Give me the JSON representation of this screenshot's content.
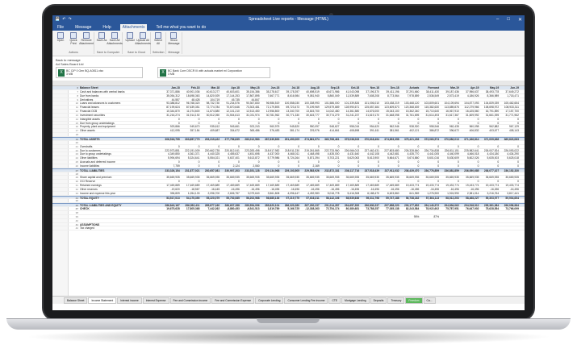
{
  "window": {
    "title": "Spreadsheet Live reports - Message (HTML)"
  },
  "tabs": [
    "File",
    "Message",
    "Help",
    "Attachments",
    "Tell me what you want to do"
  ],
  "active_tab": "Attachments",
  "ribbon": {
    "groups": [
      {
        "label": "Actions",
        "buttons": [
          "Open",
          "Quick Print",
          "Remove Attachment"
        ]
      },
      {
        "label": "Save to Computer",
        "buttons": [
          "Save As",
          "Save All Attachments"
        ]
      },
      {
        "label": "Save to Cloud",
        "buttons": [
          "Upload",
          "Upload All Attachments"
        ]
      },
      {
        "label": "Selection",
        "buttons": [
          "Select All"
        ]
      },
      {
        "label": "Message",
        "buttons": [
          "Show Message"
        ]
      }
    ]
  },
  "message": {
    "back": "Back to message",
    "meta": "Ad Sales Board Ltd",
    "attachments": [
      {
        "name": "BC CIP 0 Gen BQ-A0811.xlsx",
        "size": "3 MB"
      },
      {
        "name": "BC Bank Core DSCR III with actuals market ml Corporation",
        "size": "3 MB"
      }
    ]
  },
  "sheet": {
    "title": "Balance Sheet",
    "columns": [
      "Jan-18",
      "Feb-18",
      "Mar-18",
      "Apr-18",
      "May-18",
      "Jun-18",
      "Jul-18",
      "Aug-18",
      "Sep-18",
      "Oct-18",
      "Nov-18",
      "Dec-18",
      "Jan-19",
      "Feb-19",
      "Mar-19",
      "Apr-19",
      "May-19",
      "Jun-19"
    ],
    "rows": [
      {
        "n": "6",
        "label": "Balance Sheet",
        "style": "hdr",
        "values": [
          "Jan-18",
          "Feb-18",
          "Mar-18",
          "Apr-18",
          "May-18",
          "Jun-18",
          "Jul-18",
          "Aug-18",
          "Sep-18",
          "Oct-18",
          "Nov-18",
          "Dec-18",
          "Actuals",
          "Forecast",
          "Mar-19",
          "Apr-19",
          "May-19",
          "Jun-19"
        ]
      },
      {
        "n": "7",
        "label": "Cash and balances with central banks",
        "values": [
          "37,371,886",
          "40,901,036",
          "40,613,277",
          "40,603,601",
          "35,154,386",
          "35,278,617",
          "39,178,397",
          "40,698,519",
          "40,671,986",
          "41,043,098",
          "37,196,370",
          "39,411,196",
          "37,291,660",
          "38,411,430",
          "39,187,436",
          "37,956,637",
          "38,493,778",
          "37,649,272"
        ]
      },
      {
        "n": "8",
        "label": "Due from banks",
        "values": [
          "35,054,312",
          "18,698,363",
          "14,820,929",
          "17,144,253",
          "17,867,895",
          "7,667,771",
          "8,616,984",
          "9,081,940",
          "5,860,049",
          "11,539,889",
          "7,608,208",
          "8,773,564",
          "7,978,859",
          "2,536,549",
          "2,573,419",
          "4,186,926",
          "8,366,989",
          "1,718,471"
        ]
      },
      {
        "n": "9",
        "label": "Derivatives",
        "values": [
          "44,557",
          "48,428",
          "104,719",
          "45,735",
          "44,847",
          "",
          "",
          "",
          "",
          "",
          "",
          "",
          "",
          "",
          "",
          "",
          "",
          ""
        ]
      },
      {
        "n": "10",
        "label": "Loans and advances to customers",
        "values": [
          "93,388,812",
          "96,768,320",
          "98,732,730",
          "91,234,576",
          "90,367,830",
          "96,986,519",
          "100,558,030",
          "100,308,993",
          "101,586,000",
          "101,339,826",
          "101,006,010",
          "103,438,219",
          "103,468,120",
          "103,809,601",
          "104,109,694",
          "104,877,093",
          "104,839,039",
          "105,462,654"
        ]
      },
      {
        "n": "11",
        "label": "Financial leases",
        "values": [
          "87,199,624",
          "87,639,351",
          "72,774,784",
          "70,670,646",
          "73,303,481",
          "72,179,893",
          "69,723,473",
          "70,199,969",
          "129,579,689",
          "128,990,671",
          "125,657,484",
          "123,609,873",
          "120,368,639",
          "115,382,630",
          "113,889,876",
          "112,279,966",
          "108,698,972",
          "108,933,311"
        ]
      },
      {
        "n": "12",
        "label": "Financial OCB",
        "values": [
          "10,344,870",
          "11,074,600",
          "11,674,580",
          "12,101,210",
          "12,513,450",
          "12,956,800",
          "13,340,700",
          "13,815,700",
          "14,042,480",
          "14,361,580",
          "14,676,000",
          "15,043,100",
          "15,362,340",
          "15,710,640",
          "16,067,910",
          "16,425,560",
          "16,791,890",
          "17,157,700"
        ]
      },
      {
        "n": "13",
        "label": "Investment securities",
        "values": [
          "31,216,274",
          "31,914,192",
          "30,512,050",
          "31,504,613",
          "31,031,974",
          "30,781,962",
          "30,771,330",
          "30,615,777",
          "30,774,279",
          "31,241,237",
          "31,619,170",
          "31,648,098",
          "31,761,695",
          "31,614,493",
          "31,617,367",
          "31,609,992",
          "31,661,095",
          "31,771,962"
        ]
      },
      {
        "n": "14",
        "label": "Intangible assets",
        "values": [
          "0",
          "0",
          "0",
          "0",
          "0",
          "0",
          "0",
          "0",
          "0",
          "0",
          "0",
          "0",
          "0",
          "0",
          "0",
          "0",
          "0",
          "0"
        ]
      },
      {
        "n": "15",
        "label": "Due from group undertakings",
        "values": [
          "0",
          "0",
          "0",
          "0",
          "0",
          "0",
          "0",
          "0",
          "0",
          "0",
          "0",
          "0",
          "0",
          "0",
          "0",
          "0",
          "0",
          "0"
        ]
      },
      {
        "n": "16",
        "label": "Property, plant and equipment",
        "values": [
          "929,866",
          "949,670",
          "935,612",
          "945,661",
          "923,243",
          "960,975",
          "945,820",
          "950,097",
          "948,627",
          "958,016",
          "954,620",
          "962,946",
          "938,920",
          "958,946",
          "962,435",
          "960,098",
          "962,882",
          "967,129"
        ]
      },
      {
        "n": "17",
        "label": "Other assets",
        "values": [
          "412,095",
          "357,184",
          "409,687",
          "334,672",
          "365,486",
          "376,483",
          "381,174",
          "376,976",
          "414,661",
          "408,698",
          "391,611",
          "381,561",
          "402,121",
          "386,872",
          "396,672",
          "406,832",
          "403,677",
          "408,143"
        ]
      },
      {
        "n": "18",
        "label": "",
        "values": []
      },
      {
        "n": "19",
        "label": "TOTAL ASSETS",
        "style": "tot",
        "values": [
          "306,518,795",
          "303,857,779",
          "293,319,422",
          "277,756,835",
          "283,012,583",
          "287,639,893",
          "291,490,005",
          "274,861,974",
          "363,768,461",
          "375,038,033",
          "370,618,494",
          "374,693,358",
          "375,421,236",
          "373,063,574",
          "370,682,013",
          "371,166,814",
          "371,009,638",
          "369,823,083"
        ]
      },
      {
        "n": "20",
        "label": "",
        "values": []
      },
      {
        "n": "21",
        "label": "Overdrafts",
        "values": [
          "0",
          "0",
          "0",
          "0",
          "0",
          "0",
          "0",
          "0",
          "0",
          "0",
          "0",
          "0",
          "0",
          "0",
          "0",
          "0",
          "0",
          "0"
        ]
      },
      {
        "n": "22",
        "label": "Due to customers",
        "values": [
          "222,973,851",
          "222,191,009",
          "220,662,735",
          "220,812,041",
          "223,283,498",
          "218,917,982",
          "218,911,230",
          "219,261,865",
          "222,733,960",
          "226,066,013",
          "227,462,431",
          "227,803,680",
          "226,328,840",
          "226,734,838",
          "226,811,151",
          "225,982,641",
          "226,007,924",
          "226,093,022"
        ]
      },
      {
        "n": "23",
        "label": "Due to group undertakings",
        "values": [
          "4,349,850",
          "4,361,371",
          "4,440,325",
          "4,455,637",
          "4,451,698",
          "4,437,000",
          "4,468,011",
          "4,448,498",
          "4,435,000",
          "4,431,640",
          "4,442,108",
          "4,442,681",
          "4,435,770",
          "4,441,005",
          "4,440,099",
          "4,466,018",
          "4,434,180",
          "4,434,290"
        ]
      },
      {
        "n": "24",
        "label": "Other liabilities",
        "values": [
          "5,994,694",
          "5,324,641",
          "5,554,021",
          "5,637,401",
          "5,613,872",
          "5,779,986",
          "5,724,264",
          "5,871,394",
          "5,703,221",
          "5,620,063",
          "5,613,900",
          "5,664,671",
          "5,674,860",
          "5,601,016",
          "5,630,609",
          "5,602,026",
          "5,635,003",
          "5,625,018"
        ]
      },
      {
        "n": "25",
        "label": "Accruals and deferred income",
        "values": [
          "0",
          "0",
          "0",
          "0",
          "0",
          "0",
          "0",
          "0",
          "0",
          "0",
          "0",
          "0",
          "0",
          "0",
          "0",
          "0",
          "0",
          "0"
        ]
      },
      {
        "n": "26",
        "label": "Income liabilities",
        "values": [
          "7,759",
          "0",
          "0",
          "2,124",
          "2,060",
          "0",
          "0",
          "2,169",
          "0",
          "0",
          "0",
          "0",
          "0",
          "0",
          "0",
          "0",
          "0",
          "0"
        ]
      },
      {
        "n": "27",
        "label": "TOTAL LIABILITIES",
        "style": "tot",
        "values": [
          "233,326,154",
          "231,877,021",
          "230,657,081",
          "230,907,203",
          "233,351,128",
          "229,134,968",
          "229,103,505",
          "229,583,926",
          "232,872,181",
          "236,117,716",
          "237,518,439",
          "237,911,032",
          "236,439,470",
          "236,776,859",
          "236,881,859",
          "236,050,685",
          "236,077,107",
          "236,152,330"
        ]
      },
      {
        "n": "28",
        "label": "",
        "values": []
      },
      {
        "n": "29",
        "label": "Share capital and premium",
        "values": [
          "35,669,935",
          "35,669,935",
          "35,669,935",
          "35,669,935",
          "35,669,935",
          "35,669,935",
          "35,669,935",
          "35,669,935",
          "35,669,935",
          "35,669,935",
          "35,669,935",
          "35,669,935",
          "35,669,935",
          "35,669,935",
          "35,669,935",
          "35,669,935",
          "35,669,935",
          "35,669,935"
        ]
      },
      {
        "n": "30",
        "label": "OCI Reserve",
        "values": [
          "0",
          "0",
          "0",
          "0",
          "0",
          "0",
          "0",
          "0",
          "0",
          "0",
          "0",
          "0",
          "0",
          "0",
          "0",
          "0",
          "0",
          "0"
        ]
      },
      {
        "n": "31",
        "label": "Retained earnings",
        "values": [
          "17,469,889",
          "17,469,889",
          "17,469,889",
          "17,469,889",
          "17,469,889",
          "17,469,889",
          "17,469,889",
          "17,469,889",
          "17,469,889",
          "17,469,889",
          "17,469,889",
          "17,469,889",
          "19,433,774",
          "19,433,774",
          "19,433,774",
          "19,433,774",
          "19,433,774",
          "19,433,774"
        ]
      },
      {
        "n": "32",
        "label": "Other reserves",
        "values": [
          "-19,620",
          "-18,567",
          "-16,445",
          "-16,496",
          "-16,496",
          "-16,496",
          "-16,496",
          "-16,496",
          "-16,496",
          "-16,496",
          "-16,496",
          "-16,496",
          "-16,496",
          "-16,496",
          "-16,496",
          "-16,496",
          "-16,496",
          "-16,496"
        ]
      },
      {
        "n": "33",
        "label": "Income and expense this year",
        "values": [
          "396,809",
          "1,054,133",
          "2,096,700",
          "2,606,757",
          "3,079,640",
          "3,561,808",
          "4,096,447",
          "4,492,983",
          "5,018,778",
          "5,416,308",
          "6,188,470",
          "6,623,860",
          "641,969",
          "1,276,900",
          "1,924,990",
          "2,381,014",
          "3,216,764",
          "3,817,441"
        ]
      },
      {
        "n": "34",
        "label": "TOTAL EQUITY",
        "style": "tot",
        "values": [
          "53,517,013",
          "54,175,390",
          "55,220,079",
          "55,730,085",
          "56,202,968",
          "56,685,136",
          "57,219,775",
          "57,616,311",
          "58,142,106",
          "58,539,636",
          "59,311,798",
          "59,747,188",
          "56,738,182",
          "57,364,113",
          "58,012,203",
          "58,468,227",
          "59,303,977",
          "59,904,654"
        ]
      },
      {
        "n": "35",
        "label": "",
        "values": []
      },
      {
        "n": "36",
        "label": "TOTAL LIABILITIES AND EQUITY",
        "style": "tot",
        "values": [
          "286,843,167",
          "286,052,411",
          "285,877,160",
          "286,637,288",
          "289,554,096",
          "285,820,104",
          "286,323,280",
          "287,200,237",
          "291,014,287",
          "294,657,352",
          "296,830,237",
          "297,658,220",
          "293,177,652",
          "294,140,972",
          "294,894,062",
          "294,518,912",
          "295,381,084",
          "296,056,984"
        ]
      },
      {
        "n": "37",
        "label": "CHECK",
        "style": "bold",
        "values": [
          "19,675,628",
          "17,805,368",
          "7,442,262",
          "-8,880,453",
          "-6,541,513",
          "1,819,789",
          "5,166,725",
          "-12,338,263",
          "72,754,174",
          "80,380,681",
          "73,788,257",
          "77,035,138",
          "82,243,584",
          "78,922,602",
          "75,787,951",
          "76,647,902",
          "75,628,554",
          "73,766,099"
        ]
      },
      {
        "n": "38",
        "label": "",
        "values": []
      },
      {
        "n": "39",
        "label": "",
        "values": [
          "",
          "",
          "",
          "",
          "",
          "",
          "",
          "",
          "",
          "",
          "",
          "",
          "95%",
          "87%",
          "",
          "",
          "",
          ""
        ]
      },
      {
        "n": "40",
        "label": "",
        "values": []
      },
      {
        "n": "41",
        "label": "ASSUMPTIONS",
        "style": "bold",
        "values": []
      },
      {
        "n": "42",
        "label": "Tax charged",
        "values": []
      }
    ]
  },
  "sheet_tabs": [
    "Balance Sheet",
    "Income Statement",
    "Interest income",
    "Interest Expense",
    "Fee and Commission income",
    "Fee and Commission Expense",
    "Corporate Lending",
    "Consumer Lending Fee income",
    "CTE",
    "Mortgage Lending",
    "Deposits",
    "Treasury",
    "Freedom",
    "Ca..."
  ],
  "active_sheet": "Income Statement",
  "colors": {
    "ribbon": "#2b579a",
    "excel": "#217346",
    "total_row": "#dbe5f1"
  }
}
